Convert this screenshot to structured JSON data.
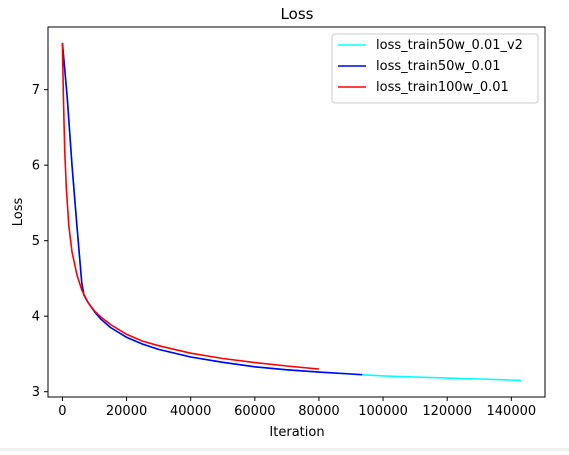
{
  "chart_data": {
    "type": "line",
    "title": "Loss",
    "xlabel": "Iteration",
    "ylabel": "Loss",
    "xlim": [
      -4500,
      150500
    ],
    "ylim": [
      2.93,
      7.83
    ],
    "xticks": [
      0,
      20000,
      40000,
      60000,
      80000,
      100000,
      120000,
      140000
    ],
    "xtick_labels": [
      "0",
      "20000",
      "40000",
      "60000",
      "80000",
      "100000",
      "120000",
      "140000"
    ],
    "yticks": [
      3,
      4,
      5,
      6,
      7
    ],
    "ytick_labels": [
      "3",
      "4",
      "5",
      "6",
      "7"
    ],
    "grid": false,
    "legend_position": "top-right",
    "series": [
      {
        "name": "loss_train50w_0.01_v2",
        "color": "#00ffff",
        "x": [
          0,
          1500,
          3000,
          4500,
          6000,
          6700,
          8000,
          10000,
          12000,
          15000,
          20000,
          25000,
          30000,
          40000,
          50000,
          60000,
          70000,
          80000,
          90000,
          93000,
          100000,
          110000,
          120000,
          130000,
          140000,
          143000
        ],
        "y": [
          7.62,
          6.9,
          6.0,
          5.2,
          4.45,
          4.28,
          4.18,
          4.06,
          3.96,
          3.85,
          3.72,
          3.63,
          3.56,
          3.46,
          3.39,
          3.33,
          3.29,
          3.26,
          3.235,
          3.225,
          3.21,
          3.195,
          3.18,
          3.168,
          3.155,
          3.15
        ]
      },
      {
        "name": "loss_train50w_0.01",
        "color": "#0000ff",
        "x": [
          0,
          1500,
          3000,
          4500,
          6000,
          6700,
          8000,
          10000,
          12000,
          15000,
          20000,
          25000,
          30000,
          40000,
          50000,
          60000,
          70000,
          80000,
          90000,
          93500
        ],
        "y": [
          7.62,
          6.9,
          6.0,
          5.2,
          4.45,
          4.28,
          4.18,
          4.06,
          3.96,
          3.85,
          3.72,
          3.63,
          3.56,
          3.46,
          3.39,
          3.33,
          3.29,
          3.26,
          3.235,
          3.225
        ]
      },
      {
        "name": "loss_train100w_0.01",
        "color": "#ff0000",
        "x": [
          0,
          300,
          700,
          1200,
          2000,
          3000,
          4500,
          6000,
          8000,
          10000,
          12000,
          15000,
          20000,
          25000,
          30000,
          40000,
          50000,
          60000,
          70000,
          80000
        ],
        "y": [
          7.62,
          6.9,
          6.2,
          5.7,
          5.2,
          4.85,
          4.55,
          4.35,
          4.18,
          4.07,
          3.99,
          3.89,
          3.76,
          3.67,
          3.61,
          3.51,
          3.44,
          3.385,
          3.34,
          3.3
        ]
      }
    ]
  }
}
